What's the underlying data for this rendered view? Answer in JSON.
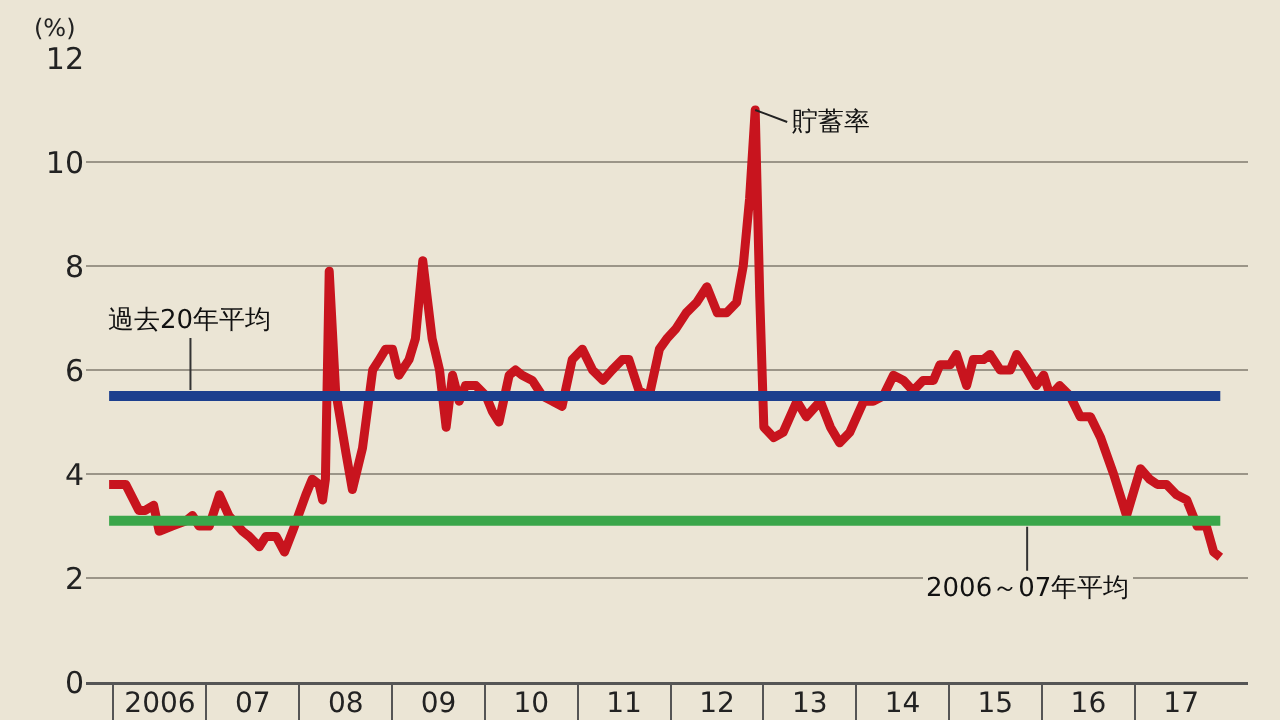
{
  "chart_data": {
    "type": "line",
    "ylabel": "(%)",
    "series": [
      {
        "name": "貯蓄率",
        "color": "#c8141e",
        "x": [
          "2005-12-13",
          "2006-02-16",
          "2006-04-09",
          "2006-05-04",
          "2006-06-06",
          "2006-06-28",
          "2006-08-18",
          "2006-10-12",
          "2006-11-06",
          "2006-12-02",
          "2007-01-11",
          "2007-02-20",
          "2007-03-29",
          "2007-05-22",
          "2007-06-17",
          "2007-07-27",
          "2007-08-22",
          "2007-10-01",
          "2007-11-03",
          "2007-12-05",
          "2008-01-26",
          "2008-02-20",
          "2008-03-18",
          "2008-04-01",
          "2008-04-12",
          "2008-04-27",
          "2008-05-22",
          "2008-07-02",
          "2008-07-27",
          "2008-09-05",
          "2008-10-15",
          "2008-11-10",
          "2008-12-05",
          "2009-01-01",
          "2009-01-26",
          "2009-03-07",
          "2009-04-01",
          "2009-04-30",
          "2009-06-06",
          "2009-07-05",
          "2009-07-31",
          "2009-08-25",
          "2009-09-20",
          "2009-10-15",
          "2009-11-25",
          "2010-01-04",
          "2010-01-29",
          "2010-02-24",
          "2010-04-05",
          "2010-04-30",
          "2010-05-26",
          "2010-07-05",
          "2010-08-14",
          "2010-09-23",
          "2010-10-30",
          "2010-12-09",
          "2011-01-18",
          "2011-02-27",
          "2011-04-09",
          "2011-05-15",
          "2011-06-24",
          "2011-07-20",
          "2011-08-29",
          "2011-10-08",
          "2011-11-17",
          "2011-12-16",
          "2012-01-22",
          "2012-03-02",
          "2012-04-12",
          "2012-05-22",
          "2012-07-02",
          "2012-08-07",
          "2012-09-16",
          "2012-10-12",
          "2012-11-06",
          "2012-11-28",
          "2012-12-16",
          "2013-01-01",
          "2013-02-09",
          "2013-03-18",
          "2013-05-11",
          "2013-06-17",
          "2013-08-11",
          "2013-09-20",
          "2013-10-26",
          "2013-12-05",
          "2014-01-29",
          "2014-03-07",
          "2014-04-16",
          "2014-05-26",
          "2014-07-05",
          "2014-08-11",
          "2014-09-20",
          "2014-10-30",
          "2014-11-25",
          "2015-01-04",
          "2015-01-29",
          "2015-03-10",
          "2015-04-05",
          "2015-05-15",
          "2015-06-10",
          "2015-07-20",
          "2015-08-29",
          "2015-09-23",
          "2015-11-03",
          "2015-12-09",
          "2016-01-07",
          "2016-02-02",
          "2016-03-10",
          "2016-04-20",
          "2016-05-30",
          "2016-07-09",
          "2016-08-18",
          "2016-10-08",
          "2016-11-28",
          "2017-01-22",
          "2017-02-27",
          "2017-03-29",
          "2017-05-04",
          "2017-06-13",
          "2017-07-23",
          "2017-09-02",
          "2017-10-08",
          "2017-11-06",
          "2017-12-02"
        ],
        "values": [
          3.8,
          3.8,
          3.3,
          3.3,
          3.4,
          2.9,
          3.0,
          3.1,
          3.2,
          3.0,
          3.0,
          3.6,
          3.2,
          2.9,
          2.8,
          2.6,
          2.8,
          2.8,
          2.5,
          2.9,
          3.6,
          3.9,
          3.8,
          3.5,
          3.9,
          7.9,
          5.6,
          4.4,
          3.7,
          4.5,
          6.0,
          6.2,
          6.4,
          6.4,
          5.9,
          6.2,
          6.6,
          8.1,
          6.6,
          6.0,
          4.9,
          5.9,
          5.4,
          5.7,
          5.7,
          5.5,
          5.2,
          5.0,
          5.9,
          6.0,
          5.9,
          5.8,
          5.5,
          5.4,
          5.3,
          6.2,
          6.4,
          6.0,
          5.8,
          6.0,
          6.2,
          6.2,
          5.6,
          5.5,
          6.4,
          6.6,
          6.8,
          7.1,
          7.3,
          7.6,
          7.1,
          7.1,
          7.3,
          8.0,
          9.3,
          11.0,
          7.4,
          4.9,
          4.7,
          4.8,
          5.4,
          5.1,
          5.4,
          4.9,
          4.6,
          4.8,
          5.4,
          5.4,
          5.5,
          5.9,
          5.8,
          5.6,
          5.8,
          5.8,
          6.1,
          6.1,
          6.3,
          5.7,
          6.2,
          6.2,
          6.3,
          6.0,
          6.0,
          6.3,
          6.0,
          5.7,
          5.9,
          5.5,
          5.7,
          5.5,
          5.1,
          5.1,
          4.7,
          4.0,
          3.2,
          4.1,
          3.9,
          3.8,
          3.8,
          3.6,
          3.5,
          3.0,
          3.0,
          2.5,
          2.4
        ]
      }
    ],
    "xlim": [
      "2005-09-13",
      "2018-03-21"
    ],
    "xticks": [
      {
        "value": "2006-07-01",
        "label": "2006"
      },
      {
        "value": "2007-07-01",
        "label": "07"
      },
      {
        "value": "2008-07-01",
        "label": "08"
      },
      {
        "value": "2009-07-01",
        "label": "09"
      },
      {
        "value": "2010-07-01",
        "label": "10"
      },
      {
        "value": "2011-07-01",
        "label": "11"
      },
      {
        "value": "2012-07-01",
        "label": "12"
      },
      {
        "value": "2013-07-01",
        "label": "13"
      },
      {
        "value": "2014-07-01",
        "label": "14"
      },
      {
        "value": "2015-07-01",
        "label": "15"
      },
      {
        "value": "2016-07-01",
        "label": "16"
      },
      {
        "value": "2017-07-01",
        "label": "17"
      }
    ],
    "ylim": [
      0,
      12
    ],
    "yticks": [
      0,
      2,
      4,
      6,
      8,
      10,
      12
    ],
    "ref_lines": [
      {
        "axis": "y",
        "value": 5.5,
        "label": "過去20年平均",
        "color": "#1c3f8e"
      },
      {
        "axis": "y",
        "value": 3.1,
        "label": "2006～07年平均",
        "color": "#3aa64a"
      }
    ],
    "grid": "y",
    "legend": false,
    "line_style": "solid",
    "marker": "none"
  }
}
